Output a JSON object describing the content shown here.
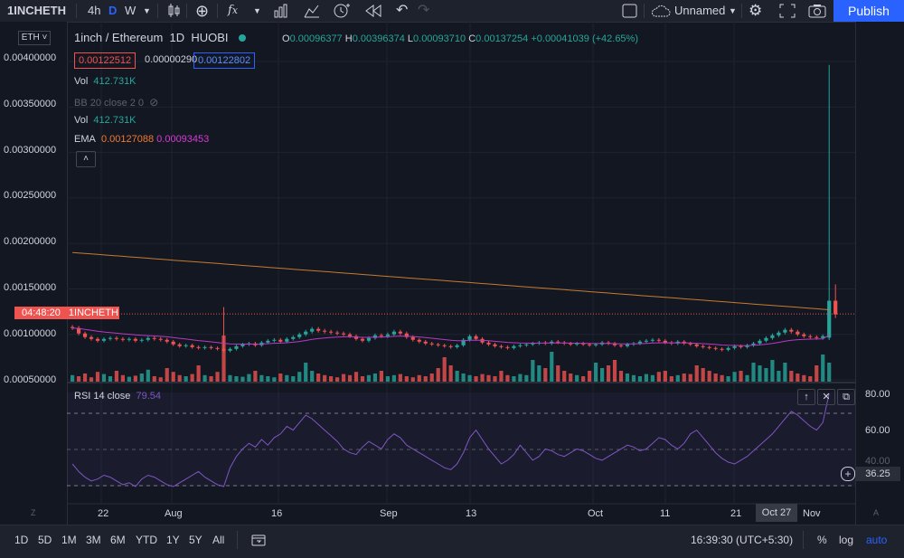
{
  "toolbar": {
    "symbol": "1INCHETH",
    "intervals": [
      "4h",
      "D",
      "W"
    ],
    "layout_name": "Unnamed",
    "publish_label": "Publish"
  },
  "chart": {
    "currency_select": "ETH",
    "title": "1inch / Ethereum",
    "interval": "1D",
    "exchange": "HUOBI",
    "ohlc": {
      "o_label": "O",
      "o": "0.00096377",
      "h_label": "H",
      "h": "0.00396374",
      "l_label": "L",
      "l": "0.00093710",
      "c_label": "C",
      "c": "0.00137254",
      "change": "+0.00041039 (+42.65%)"
    },
    "bid": "0.00122512",
    "spread": "0.00000290",
    "ask": "0.00122802",
    "indicators": [
      {
        "label": "Vol",
        "value": "412.731K"
      },
      {
        "label": "BB 20 close 2 0",
        "value": ""
      },
      {
        "label": "Vol",
        "value": "412.731K"
      },
      {
        "label": "EMA",
        "value1": "0.00127088",
        "value2": "0.00093453"
      }
    ],
    "price_tag": {
      "time": "04:48:20",
      "symbol": "1INCHETH"
    },
    "y_axis_labels": [
      "0.00400000",
      "0.00350000",
      "0.00300000",
      "0.00250000",
      "0.00200000",
      "0.00150000",
      "0.00100000",
      "0.00050000"
    ],
    "x_axis_labels": [
      "22",
      "Aug",
      "16",
      "Sep",
      "13",
      "Oct",
      "11",
      "21",
      "Nov"
    ],
    "x_axis_highlight": "Oct 27",
    "rsi": {
      "label": "RSI 14 close",
      "value": "79.54",
      "axis_labels": [
        "80.00",
        "60.00",
        "40.00"
      ],
      "current": "36.25"
    },
    "colors": {
      "up": "#26a69a",
      "down": "#ef5350",
      "ema_slow": "#c77a31",
      "ema_fast": "#b83ac4",
      "rsi": "#7e57c2"
    }
  },
  "bottom": {
    "ranges": [
      "1D",
      "5D",
      "1M",
      "3M",
      "6M",
      "YTD",
      "1Y",
      "5Y",
      "All"
    ],
    "clock": "16:39:30 (UTC+5:30)",
    "percent": "%",
    "log": "log",
    "auto": "auto"
  },
  "chart_data": {
    "type": "candlestick",
    "title": "1inch / Ethereum",
    "ylim": [
      0.0005,
      0.0041
    ],
    "x_ticks": [
      "22",
      "Aug",
      "16",
      "Sep",
      "13",
      "Oct",
      "11",
      "21",
      "Oct 27",
      "Nov"
    ],
    "last_candle": {
      "open": 0.00096377,
      "high": 0.00396374,
      "low": 0.0009371,
      "close": 0.00137254
    },
    "ema_fast_last": 0.00093453,
    "ema_slow_last": 0.00127088,
    "rsi_last": 79.54,
    "closes": [
      0.00107,
      0.00101,
      0.00097,
      0.00095,
      0.00093,
      0.00095,
      0.00096,
      0.00095,
      0.00094,
      0.00095,
      0.00093,
      0.00094,
      0.00096,
      0.00095,
      0.00094,
      0.00092,
      0.00089,
      0.00087,
      0.00088,
      0.00086,
      0.00085,
      0.00086,
      0.00085,
      0.00084,
      0.00082,
      0.00084,
      0.00087,
      0.00089,
      0.0009,
      0.00088,
      0.00091,
      0.00093,
      0.00094,
      0.00092,
      0.00095,
      0.00097,
      0.001,
      0.00103,
      0.00106,
      0.00104,
      0.00103,
      0.00102,
      0.00101,
      0.001,
      0.00098,
      0.00095,
      0.00093,
      0.00096,
      0.00099,
      0.00098,
      0.001,
      0.00103,
      0.00101,
      0.00097,
      0.00094,
      0.00092,
      0.0009,
      0.00089,
      0.00088,
      0.00087,
      0.00086,
      0.00088,
      0.00094,
      0.00098,
      0.00095,
      0.00091,
      0.00089,
      0.00087,
      0.00086,
      0.00085,
      0.00087,
      0.00088,
      0.00089,
      0.0009,
      0.00091,
      0.0009,
      0.00092,
      0.00091,
      0.0009,
      0.00089,
      0.0009,
      0.00089,
      0.00088,
      0.00089,
      0.00091,
      0.0009,
      0.00088,
      0.00087,
      0.00089,
      0.0009,
      0.00092,
      0.00093,
      0.00094,
      0.00093,
      0.00091,
      0.0009,
      0.00092,
      0.0009,
      0.00089,
      0.00087,
      0.00086,
      0.00085,
      0.00084,
      0.00083,
      0.00085,
      0.00087,
      0.00086,
      0.00088,
      0.0009,
      0.00093,
      0.00096,
      0.00099,
      0.00102,
      0.00105,
      0.00103,
      0.001,
      0.00098,
      0.00097,
      0.00096,
      0.00098,
      0.00137
    ],
    "volumes": [
      0.12,
      0.1,
      0.15,
      0.08,
      0.18,
      0.14,
      0.1,
      0.2,
      0.12,
      0.09,
      0.11,
      0.15,
      0.22,
      0.1,
      0.08,
      0.25,
      0.18,
      0.12,
      0.1,
      0.14,
      0.3,
      0.12,
      0.1,
      0.18,
      0.85,
      0.12,
      0.1,
      0.09,
      0.14,
      0.2,
      0.12,
      0.1,
      0.08,
      0.15,
      0.12,
      0.1,
      0.18,
      0.35,
      0.2,
      0.15,
      0.12,
      0.1,
      0.08,
      0.14,
      0.12,
      0.18,
      0.1,
      0.12,
      0.15,
      0.2,
      0.1,
      0.12,
      0.14,
      0.1,
      0.08,
      0.12,
      0.1,
      0.15,
      0.25,
      0.45,
      0.3,
      0.2,
      0.15,
      0.12,
      0.1,
      0.14,
      0.12,
      0.1,
      0.2,
      0.12,
      0.1,
      0.14,
      0.12,
      0.4,
      0.3,
      0.25,
      0.55,
      0.3,
      0.2,
      0.15,
      0.12,
      0.1,
      0.2,
      0.35,
      0.25,
      0.3,
      0.4,
      0.2,
      0.15,
      0.12,
      0.1,
      0.14,
      0.12,
      0.18,
      0.2,
      0.1,
      0.12,
      0.15,
      0.14,
      0.3,
      0.25,
      0.2,
      0.15,
      0.12,
      0.1,
      0.18,
      0.2,
      0.12,
      0.35,
      0.3,
      0.25,
      0.4,
      0.2,
      0.35,
      0.2,
      0.15,
      0.12,
      0.1,
      0.3,
      0.5,
      0.35
    ],
    "rsi": [
      42,
      38,
      35,
      33,
      34,
      36,
      35,
      33,
      31,
      32,
      30,
      34,
      36,
      35,
      33,
      31,
      30,
      32,
      34,
      36,
      38,
      35,
      33,
      31,
      30,
      40,
      46,
      50,
      53,
      51,
      55,
      52,
      56,
      58,
      62,
      60,
      64,
      68,
      66,
      63,
      60,
      57,
      54,
      50,
      48,
      47,
      51,
      54,
      52,
      50,
      55,
      58,
      56,
      52,
      50,
      48,
      46,
      44,
      42,
      40,
      39,
      42,
      48,
      56,
      60,
      55,
      50,
      46,
      42,
      44,
      47,
      52,
      48,
      44,
      46,
      50,
      49,
      47,
      46,
      48,
      50,
      49,
      47,
      45,
      44,
      46,
      48,
      50,
      52,
      51,
      49,
      50,
      53,
      56,
      55,
      52,
      50,
      53,
      58,
      60,
      56,
      52,
      48,
      45,
      43,
      42,
      44,
      46,
      49,
      52,
      55,
      58,
      62,
      66,
      70,
      68,
      65,
      62,
      60,
      64,
      79.54
    ]
  }
}
